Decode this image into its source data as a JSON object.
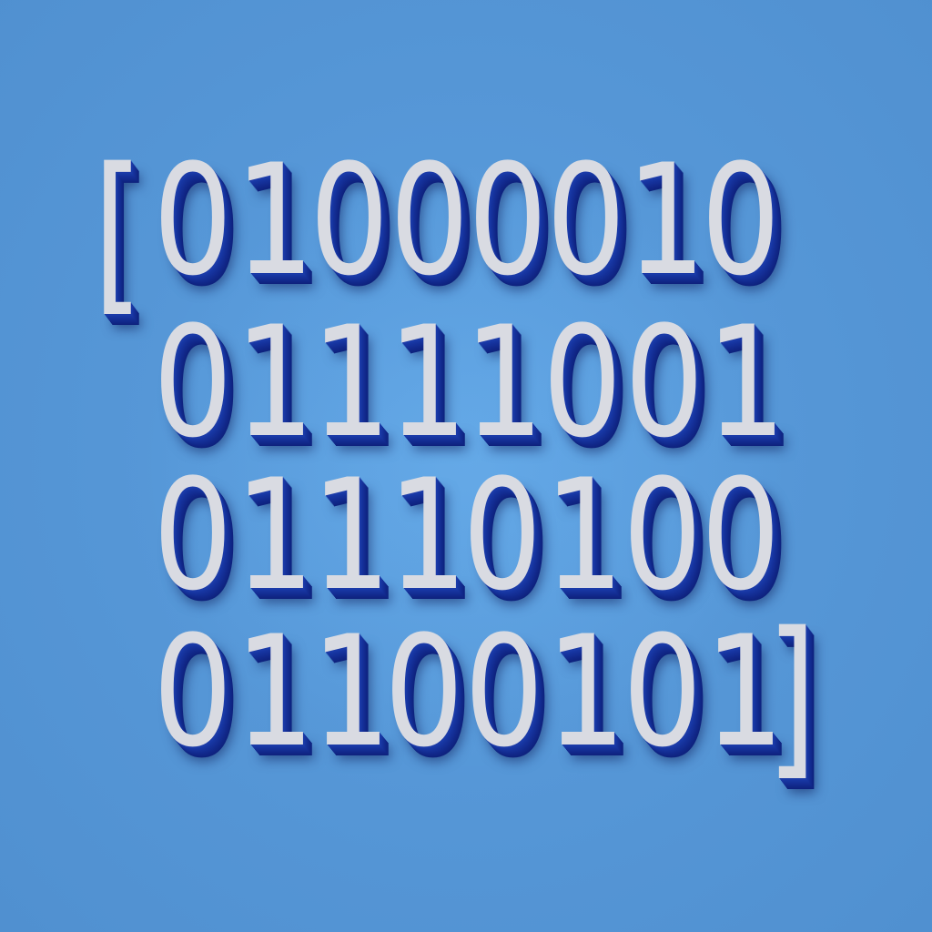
{
  "colors": {
    "background": "#5495d5",
    "digit_face": "#d9dbe2",
    "digit_extrusion": "#1a3aa8"
  },
  "bracket_open": "[",
  "bracket_close": "]",
  "rows": [
    [
      "0",
      "1",
      "0",
      "0",
      "0",
      "0",
      "1",
      "0"
    ],
    [
      "0",
      "1",
      "1",
      "1",
      "1",
      "0",
      "0",
      "1"
    ],
    [
      "0",
      "1",
      "1",
      "1",
      "0",
      "1",
      "0",
      "0"
    ],
    [
      "0",
      "1",
      "1",
      "0",
      "0",
      "1",
      "0",
      "1"
    ]
  ]
}
